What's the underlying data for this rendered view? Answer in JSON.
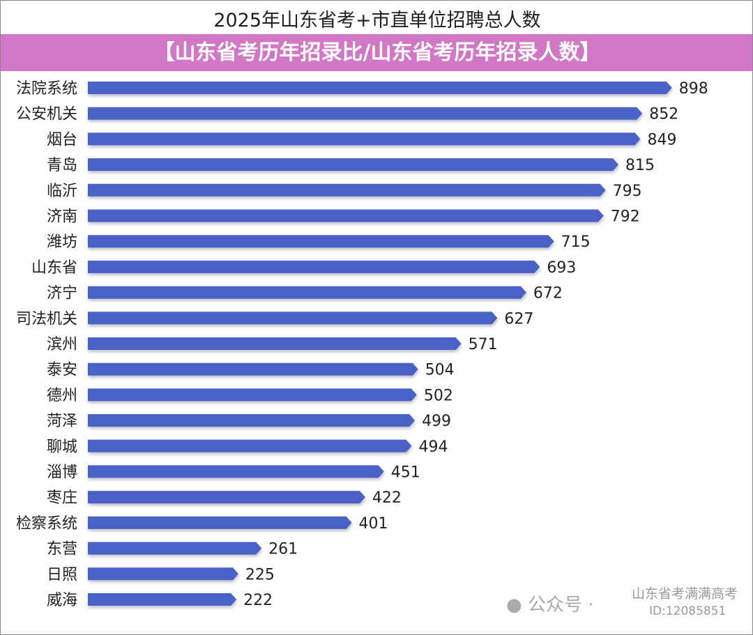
{
  "chart_data": {
    "type": "bar",
    "orientation": "horizontal",
    "title": "2025年山东省考+市直单位招聘总人数",
    "categories": [
      "法院系统",
      "公安机关",
      "烟台",
      "青岛",
      "临沂",
      "济南",
      "潍坊",
      "山东省",
      "济宁",
      "司法机关",
      "滨州",
      "泰安",
      "德州",
      "菏泽",
      "聊城",
      "淄博",
      "枣庄",
      "检察系统",
      "东营",
      "日照",
      "威海"
    ],
    "values": [
      898,
      852,
      849,
      815,
      795,
      792,
      715,
      693,
      672,
      627,
      571,
      504,
      502,
      499,
      494,
      451,
      422,
      401,
      261,
      225,
      222
    ],
    "xlabel": "",
    "ylabel": "",
    "bar_color": "#4a62c8",
    "grid": false
  },
  "banner": "【山东省考历年招录比/山东省考历年招录人数】",
  "watermark": {
    "label": "公众号 · ",
    "name": "山东省考满满高考",
    "id": "ID:12085851"
  }
}
